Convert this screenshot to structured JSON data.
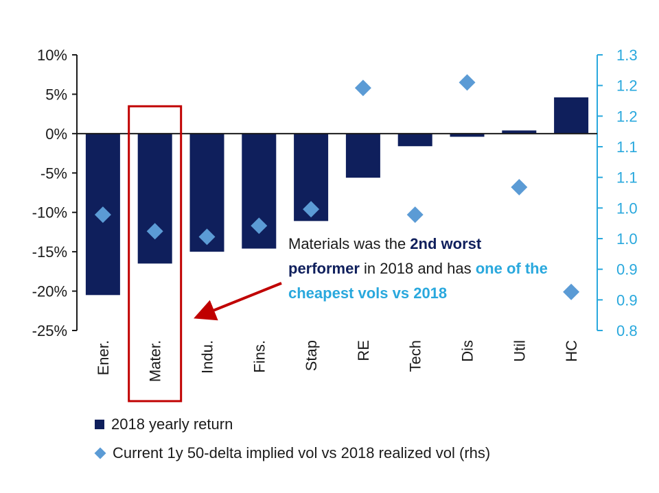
{
  "chart_data": {
    "type": "bar",
    "categories": [
      "Ener.",
      "Mater.",
      "Indu.",
      "Fins.",
      "Stap",
      "RE",
      "Tech",
      "Dis",
      "Util",
      "HC"
    ],
    "series": [
      {
        "name": "2018 yearly return",
        "kind": "bar",
        "axis": "left",
        "color": "#0f1f5c",
        "values": [
          -20.5,
          -16.5,
          -15.0,
          -14.6,
          -11.1,
          -5.6,
          -1.6,
          -0.4,
          0.4,
          4.6
        ]
      },
      {
        "name": "Current 1y 50-delta implied vol vs 2018 realized vol (rhs)",
        "kind": "scatter",
        "axis": "right",
        "marker": "diamond",
        "color": "#5b9bd5",
        "values": [
          1.01,
          0.98,
          0.97,
          0.99,
          1.02,
          1.24,
          1.01,
          1.25,
          1.06,
          0.87
        ]
      }
    ],
    "y_left": {
      "ticks": [
        "10%",
        "5%",
        "0%",
        "-5%",
        "-10%",
        "-15%",
        "-20%",
        "-25%"
      ],
      "ylim": [
        -25,
        10
      ]
    },
    "y_right": {
      "ticks": [
        "1.3",
        "1.2",
        "1.2",
        "1.1",
        "1.1",
        "1.0",
        "1.0",
        "0.9",
        "0.9",
        "0.8"
      ],
      "ylim": [
        0.8,
        1.3
      ],
      "color": "#29a8dd"
    },
    "highlight_category": "Mater.",
    "highlight_color": "#c00000",
    "legend_position": "bottom-left"
  },
  "annotation": {
    "part1": "Materials was the ",
    "part2": "2nd worst performer",
    "part3": " in 2018 and has ",
    "part4": "one of the cheapest vols vs 2018"
  }
}
